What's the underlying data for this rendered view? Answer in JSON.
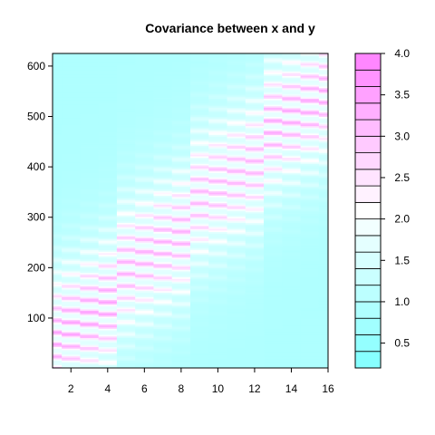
{
  "chart_data": {
    "type": "heatmap",
    "title": "Covariance between x and y",
    "xlabel": "",
    "ylabel": "",
    "xlim": [
      1,
      16
    ],
    "ylim": [
      1,
      625
    ],
    "x_ticks": [
      2,
      4,
      6,
      8,
      10,
      12,
      14,
      16
    ],
    "y_ticks": [
      100,
      200,
      300,
      400,
      500,
      600
    ],
    "grid": false,
    "colorbar": {
      "placement": "right",
      "range": [
        0.2,
        4.0
      ],
      "ticks": [
        0.5,
        1.0,
        1.5,
        2.0,
        2.5,
        3.0,
        3.5,
        4.0
      ],
      "tick_labels": [
        "0.5",
        "1.0",
        "1.5",
        "2.0",
        "2.5",
        "3.0",
        "3.5",
        "4.0"
      ],
      "breaks": [
        0.2,
        0.4,
        0.6,
        0.8,
        1.0,
        1.2,
        1.4,
        1.6,
        1.8,
        2.0,
        2.2,
        2.4,
        2.6,
        2.8,
        3.0,
        3.2,
        3.4,
        3.6,
        3.8,
        4.0
      ],
      "low_color": "#80ffff",
      "mid_color": "#ffffff",
      "high_color": "#ff80ff"
    },
    "blocks": [
      {
        "x_range": [
          1,
          4
        ],
        "offset": 0,
        "amplitude": 1.8
      },
      {
        "x_range": [
          5,
          8
        ],
        "offset": 140,
        "amplitude": 1.6
      },
      {
        "x_range": [
          9,
          12
        ],
        "offset": 280,
        "amplitude": 1.5
      },
      {
        "x_range": [
          13,
          16
        ],
        "offset": 420,
        "amplitude": 1.7
      }
    ],
    "band_period": 24
  }
}
